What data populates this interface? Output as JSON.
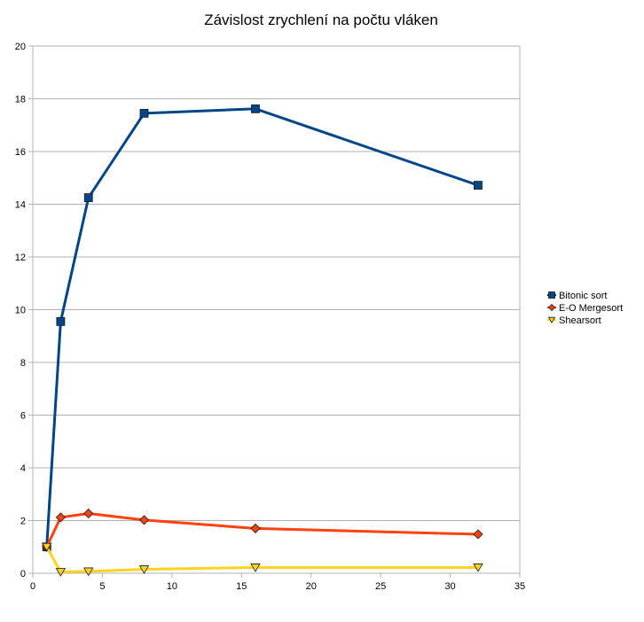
{
  "chart_data": {
    "type": "line",
    "title": "Závislost zrychlení na počtu vláken",
    "xlabel": "",
    "ylabel": "",
    "xlim": [
      0,
      35
    ],
    "ylim": [
      0,
      20
    ],
    "x_ticks": [
      0,
      5,
      10,
      15,
      20,
      25,
      30,
      35
    ],
    "y_ticks": [
      0,
      2,
      4,
      6,
      8,
      10,
      12,
      14,
      16,
      18,
      20
    ],
    "grid": "horizontal",
    "legend_position": "right",
    "x": [
      1,
      2,
      4,
      8,
      16,
      32
    ],
    "series": [
      {
        "name": "Bitonic sort",
        "color": "#004586",
        "marker": "square",
        "values": [
          1.0,
          9.55,
          14.25,
          17.45,
          17.62,
          14.72
        ]
      },
      {
        "name": "E-O Mergesort",
        "color": "#ff420e",
        "marker": "diamond",
        "values": [
          1.0,
          2.12,
          2.27,
          2.02,
          1.7,
          1.48
        ]
      },
      {
        "name": "Shearsort",
        "color": "#ffd320",
        "marker": "triangle-down",
        "values": [
          1.0,
          0.05,
          0.07,
          0.15,
          0.22,
          0.22
        ]
      }
    ]
  }
}
